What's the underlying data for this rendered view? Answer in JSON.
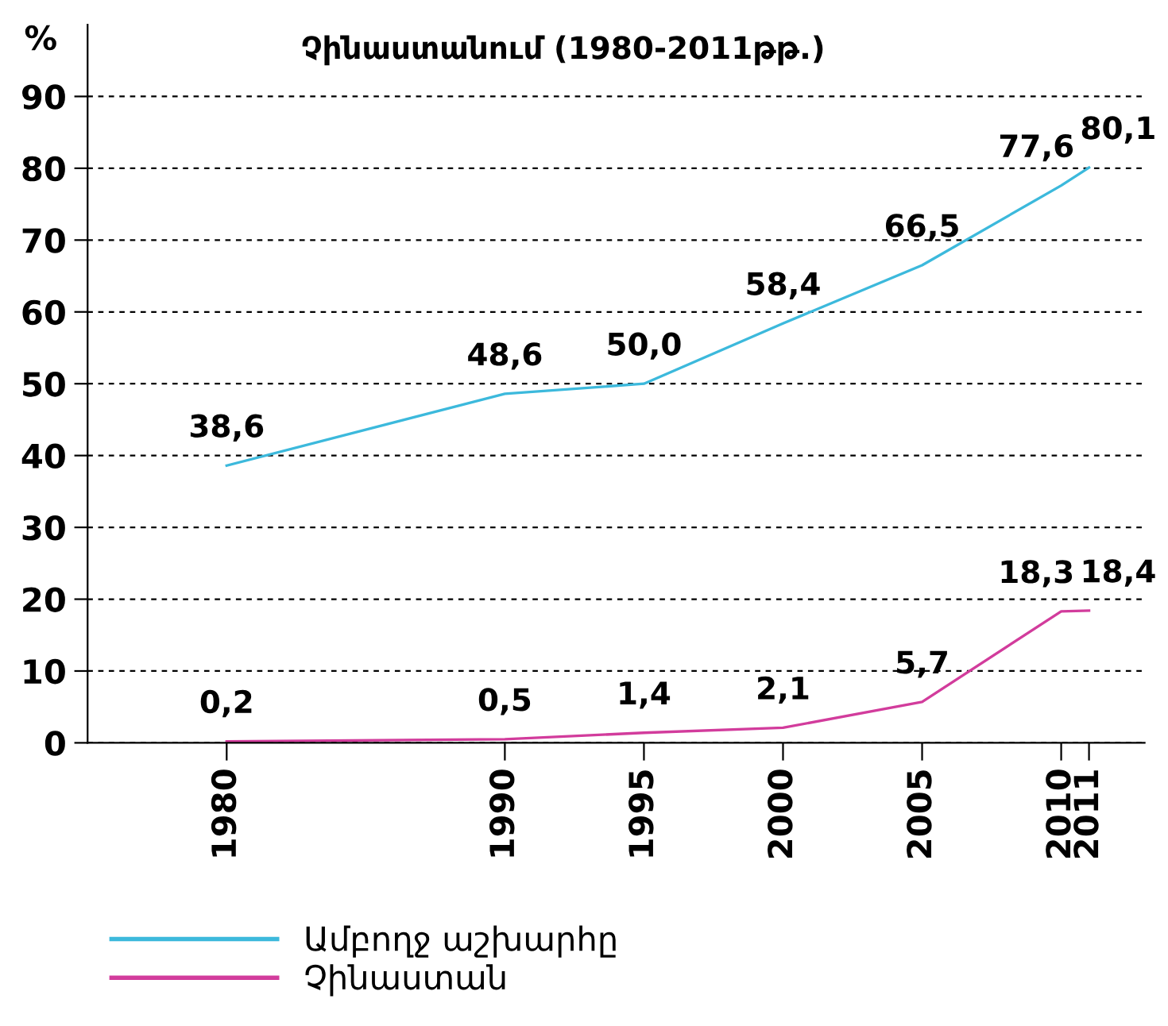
{
  "chart_data": {
    "type": "line",
    "title": "Չինաստանում (1980-2011թթ.)",
    "ylabel": "%",
    "x": [
      1980,
      1990,
      1995,
      2000,
      2005,
      2010,
      2011
    ],
    "series": [
      {
        "name": "Ամբողջ աշխարհը",
        "color": "#3cb9dc",
        "values": [
          38.6,
          48.6,
          50.0,
          58.4,
          66.5,
          77.6,
          80.1
        ],
        "value_labels": [
          "38,6",
          "48,6",
          "50,0",
          "58,4",
          "66,5",
          "77,6",
          "80,1"
        ]
      },
      {
        "name": "Չինաստան",
        "color": "#d23c9c",
        "values": [
          0.2,
          0.5,
          1.4,
          2.1,
          5.7,
          18.3,
          18.4
        ],
        "value_labels": [
          "0,2",
          "0,5",
          "1,4",
          "2,1",
          "5,7",
          "18,3",
          "18,4"
        ]
      }
    ],
    "xlim": [
      1975,
      2013
    ],
    "xticks": [
      1980,
      1990,
      1995,
      2000,
      2005,
      2010,
      2011
    ],
    "ylim": [
      0,
      100
    ],
    "yticks": [
      0,
      10,
      20,
      30,
      40,
      50,
      60,
      70,
      80,
      90
    ],
    "grid": "y",
    "legend": "bottom left",
    "marker": "none",
    "line_style": "solid"
  }
}
